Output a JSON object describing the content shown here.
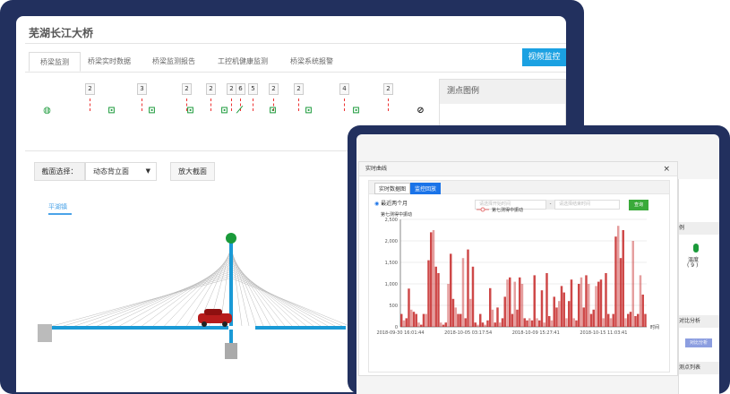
{
  "main_app": {
    "title": "芜湖长江大桥",
    "tabs": [
      {
        "label": "桥梁监测",
        "active": true
      },
      {
        "label": "桥梁实时数据"
      },
      {
        "label": "桥梁监测报告"
      },
      {
        "label": "工控机健康监测"
      },
      {
        "label": "桥梁系统报警"
      }
    ],
    "video_button": "视频监控",
    "sensor_counts": [
      "2",
      "3",
      "2",
      "2",
      "2",
      "6",
      "5",
      "2",
      "2",
      "4",
      "2"
    ],
    "legend_title": "测点图例",
    "section_label": "截面选择：",
    "section_value": "动态背立面",
    "zoom_button": "放大截面",
    "direction_label": "平湖镇",
    "deck_color": "#1a9ad6",
    "sensor_color": "#1a9a3a"
  },
  "side_panel": {
    "legend_header": "例",
    "sensor_name": "温度",
    "sensor_count": "( 9 )",
    "compare_header": "对比分析",
    "compare_button": "对比分析",
    "list_header": "测点列表"
  },
  "modal": {
    "title": "实时曲线",
    "close": "×",
    "tabs": [
      {
        "label": "实时数据图"
      },
      {
        "label": "监控回放",
        "active": true
      }
    ],
    "range_option": "最近两个月",
    "start_placeholder": "请选择开始时间",
    "separator": "-",
    "end_placeholder": "请选择结束时间",
    "query_button": "查询",
    "query_color": "#3aaa3a"
  },
  "chart_data": {
    "type": "bar",
    "legend": [
      "第七测得中振动"
    ],
    "ylabel": "第七测得中振动",
    "xlabel": "时间",
    "ylim": [
      0,
      2500
    ],
    "yticks": [
      "0",
      "500",
      "1,000",
      "1,500",
      "2,000",
      "2,500"
    ],
    "xticks": [
      "2018-09-30 16:01:44",
      "2018-10-05 03:17:54",
      "2018-10-09 15:27:41",
      "2018-10-15 11:03:41"
    ],
    "color": "#c62828",
    "grid": true,
    "values": [
      300,
      150,
      200,
      890,
      400,
      350,
      300,
      100,
      50,
      300,
      300,
      1550,
      2200,
      2250,
      1400,
      1250,
      100,
      50,
      100,
      1000,
      1700,
      650,
      450,
      300,
      300,
      1600,
      200,
      1800,
      650,
      1400,
      100,
      50,
      300,
      100,
      50,
      150,
      900,
      400,
      100,
      450,
      100,
      200,
      700,
      1100,
      1150,
      300,
      1050,
      400,
      1150,
      1000,
      200,
      150,
      200,
      150,
      1200,
      200,
      150,
      850,
      100,
      1250,
      250,
      150,
      700,
      450,
      600,
      950,
      800,
      200,
      600,
      1100,
      200,
      150,
      1000,
      1150,
      450,
      1200,
      1000,
      300,
      400,
      950,
      1050,
      1100,
      200,
      1250,
      300,
      200,
      300,
      2100,
      2350,
      1600,
      2250,
      200,
      300,
      350,
      2000,
      250,
      300,
      1200,
      750,
      300
    ]
  }
}
